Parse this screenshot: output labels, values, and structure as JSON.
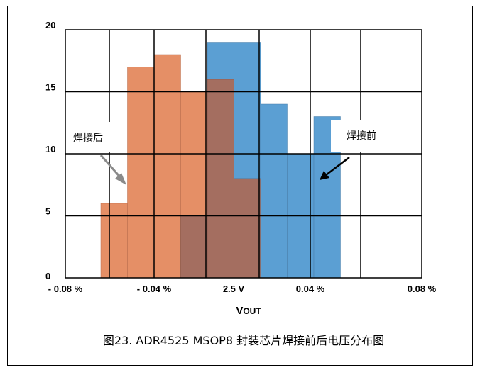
{
  "chart_data": {
    "type": "bar",
    "title": "",
    "xlabel": "VOUT",
    "ylabel": "",
    "ylim": [
      0,
      20
    ],
    "y_ticks": [
      0,
      5,
      10,
      15,
      20
    ],
    "x_tick_labels": [
      "- 0.08 %",
      "- 0.04 %",
      "2.5 V",
      "0.04 %",
      "0.08 %"
    ],
    "grid": true,
    "series": [
      {
        "name": "焊接前",
        "color": "#5b9fd3",
        "bins": [
          {
            "bin": 1,
            "value": 0
          },
          {
            "bin": 2,
            "value": 0
          },
          {
            "bin": 3,
            "value": 5
          },
          {
            "bin": 4,
            "value": 19
          },
          {
            "bin": 5,
            "value": 19
          },
          {
            "bin": 6,
            "value": 14
          },
          {
            "bin": 7,
            "value": 10
          },
          {
            "bin": 8,
            "value": 13
          }
        ]
      },
      {
        "name": "焊接后",
        "color": "#e58f66",
        "bins": [
          {
            "bin": 0,
            "value": 6
          },
          {
            "bin": 1,
            "value": 17
          },
          {
            "bin": 2,
            "value": 18
          },
          {
            "bin": 3,
            "value": 15
          },
          {
            "bin": 4,
            "value": 16
          },
          {
            "bin": 5,
            "value": 8
          }
        ]
      }
    ],
    "overlap_color": "#a46e60",
    "annotations": {
      "after": "焊接后",
      "before": "焊接前"
    }
  },
  "caption": "图23.  ADR4525 MSOP8 封装芯片焊接前后电压分布图"
}
